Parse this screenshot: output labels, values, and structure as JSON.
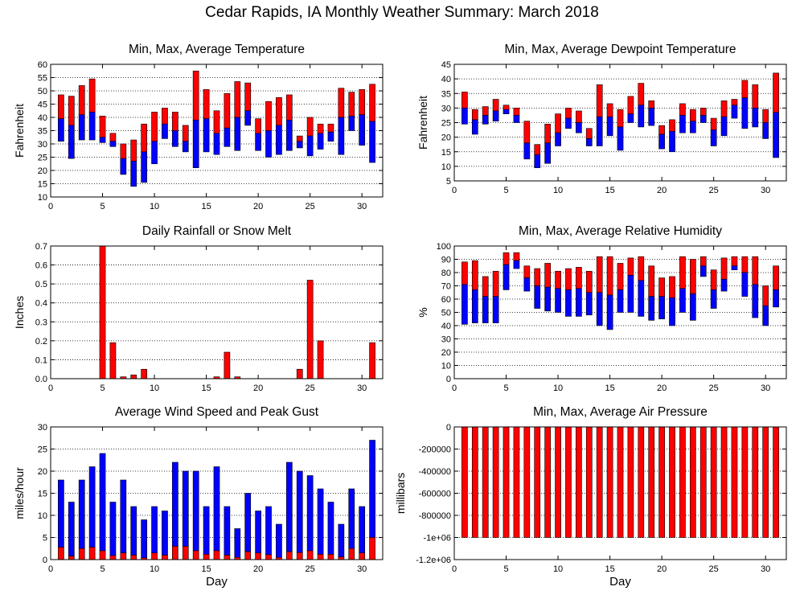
{
  "title": "Cedar Rapids, IA Monthly Weather Summary: March 2018",
  "colors": {
    "red": "#ff0000",
    "blue": "#0000ff",
    "grid": "#000000"
  },
  "chart_data": [
    {
      "id": "temp",
      "type": "bar",
      "title": "Min, Max, Average Temperature",
      "xlabel": "",
      "ylabel": "Fahrenheit",
      "xlim": [
        0,
        32
      ],
      "ylim": [
        10,
        60
      ],
      "xticks": [
        0,
        5,
        10,
        15,
        20,
        25,
        30
      ],
      "yticks": [
        10,
        15,
        20,
        25,
        30,
        35,
        40,
        45,
        50,
        55,
        60
      ],
      "grid": true,
      "x": [
        1,
        2,
        3,
        4,
        5,
        6,
        7,
        8,
        9,
        10,
        11,
        12,
        13,
        14,
        15,
        16,
        17,
        18,
        19,
        20,
        21,
        22,
        23,
        24,
        25,
        26,
        27,
        28,
        29,
        30,
        31
      ],
      "series": [
        {
          "role": "max",
          "values": [
            48.5,
            48,
            52,
            54.5,
            40.5,
            34,
            30,
            31.5,
            37.5,
            42,
            43.5,
            42,
            37,
            57.5,
            50.5,
            42.5,
            49,
            53.5,
            53,
            39.5,
            46,
            47.5,
            48.5,
            33,
            40,
            37.5,
            37.5,
            51,
            49.5,
            50.5,
            52.5
          ]
        },
        {
          "role": "avg",
          "values": [
            39.5,
            37,
            41,
            42,
            32.5,
            31,
            24.5,
            23.5,
            27,
            31,
            37.5,
            35,
            31,
            39,
            39.5,
            34,
            36,
            40,
            42.5,
            34,
            35,
            37,
            39,
            31,
            33,
            34,
            34.5,
            40,
            40.5,
            41,
            38.5
          ]
        },
        {
          "role": "min",
          "values": [
            31,
            24.5,
            31.5,
            31.5,
            30.5,
            29,
            18.5,
            14,
            15.5,
            22.5,
            32,
            29,
            27,
            21,
            27,
            26,
            29,
            27.5,
            37,
            27.5,
            25,
            26,
            27.5,
            28.5,
            25.5,
            28,
            31,
            26,
            35,
            29.5,
            23
          ]
        }
      ]
    },
    {
      "id": "dewpoint",
      "type": "bar",
      "title": "Min, Max, Average Dewpoint Temperature",
      "xlabel": "",
      "ylabel": "Fahrenheit",
      "xlim": [
        0,
        32
      ],
      "ylim": [
        5,
        45
      ],
      "xticks": [
        0,
        5,
        10,
        15,
        20,
        25,
        30
      ],
      "yticks": [
        5,
        10,
        15,
        20,
        25,
        30,
        35,
        40,
        45
      ],
      "grid": true,
      "x": [
        1,
        2,
        3,
        4,
        5,
        6,
        7,
        8,
        9,
        10,
        11,
        12,
        13,
        14,
        15,
        16,
        17,
        18,
        19,
        20,
        21,
        22,
        23,
        24,
        25,
        26,
        27,
        28,
        29,
        30,
        31
      ],
      "series": [
        {
          "role": "max",
          "values": [
            35.5,
            29.5,
            30.5,
            33,
            31,
            30,
            25.5,
            17.5,
            24.5,
            28,
            30,
            29,
            23,
            38,
            31.5,
            29.5,
            34,
            38.5,
            32.5,
            24,
            26,
            31.5,
            29.5,
            30,
            26.5,
            32.5,
            33,
            39.5,
            38,
            29.5,
            42
          ]
        },
        {
          "role": "avg",
          "values": [
            30,
            26,
            27.5,
            29,
            29.5,
            27.5,
            18,
            14,
            18,
            21.5,
            26.5,
            25,
            19.5,
            27,
            27,
            23.5,
            28,
            31,
            30,
            21,
            22,
            27.5,
            25.5,
            27.5,
            22.5,
            27,
            31,
            33.5,
            30,
            25,
            28.5
          ]
        },
        {
          "role": "min",
          "values": [
            24.5,
            21,
            24.5,
            25.5,
            28,
            25,
            12.5,
            9.5,
            11,
            17,
            23,
            21.5,
            17,
            17,
            20.5,
            15.5,
            25,
            23.5,
            24,
            16,
            15,
            21.5,
            21.5,
            25,
            17,
            20.5,
            26.5,
            23,
            23.5,
            19.5,
            13
          ]
        }
      ]
    },
    {
      "id": "rain",
      "type": "bar",
      "title": "Daily Rainfall or Snow Melt",
      "xlabel": "",
      "ylabel": "Inches",
      "xlim": [
        0,
        32
      ],
      "ylim": [
        0,
        0.7
      ],
      "xticks": [
        0,
        5,
        10,
        15,
        20,
        25,
        30
      ],
      "yticks": [
        0,
        0.1,
        0.2,
        0.3,
        0.4,
        0.5,
        0.6,
        0.7
      ],
      "ytick_labels": [
        "0.0",
        "0.1",
        "0.2",
        "0.3",
        "0.4",
        "0.5",
        "0.6",
        "0.7"
      ],
      "grid": true,
      "x": [
        1,
        2,
        3,
        4,
        5,
        6,
        7,
        8,
        9,
        10,
        11,
        12,
        13,
        14,
        15,
        16,
        17,
        18,
        19,
        20,
        21,
        22,
        23,
        24,
        25,
        26,
        27,
        28,
        29,
        30,
        31
      ],
      "series": [
        {
          "role": "precip",
          "values": [
            0,
            0,
            0,
            0,
            0.7,
            0.19,
            0.01,
            0.02,
            0.05,
            0,
            0,
            0,
            0,
            0,
            0,
            0.01,
            0.14,
            0.01,
            0,
            0,
            0,
            0,
            0,
            0.05,
            0.52,
            0.2,
            0,
            0,
            0,
            0,
            0.19
          ]
        }
      ]
    },
    {
      "id": "rh",
      "type": "bar",
      "title": "Min, Max, Average Relative Humidity",
      "xlabel": "",
      "ylabel": "%",
      "xlim": [
        0,
        32
      ],
      "ylim": [
        0,
        100
      ],
      "xticks": [
        0,
        5,
        10,
        15,
        20,
        25,
        30
      ],
      "yticks": [
        0,
        10,
        20,
        30,
        40,
        50,
        60,
        70,
        80,
        90,
        100
      ],
      "grid": true,
      "x": [
        1,
        2,
        3,
        4,
        5,
        6,
        7,
        8,
        9,
        10,
        11,
        12,
        13,
        14,
        15,
        16,
        17,
        18,
        19,
        20,
        21,
        22,
        23,
        24,
        25,
        26,
        27,
        28,
        29,
        30,
        31
      ],
      "series": [
        {
          "role": "max",
          "values": [
            88,
            89,
            77,
            81,
            95,
            95,
            85,
            83,
            87,
            81,
            83,
            84,
            81,
            92,
            92,
            87,
            91,
            92,
            85,
            76,
            77,
            92,
            90,
            92,
            82,
            91,
            92,
            92,
            92,
            70,
            85
          ]
        },
        {
          "role": "avg",
          "values": [
            71,
            67,
            62,
            62,
            86,
            89,
            76,
            70,
            69,
            68,
            67,
            68,
            65,
            65,
            63,
            67,
            78,
            74,
            62,
            62,
            61,
            68,
            64,
            85,
            67,
            75,
            85,
            80,
            71,
            55,
            67
          ]
        },
        {
          "role": "min",
          "values": [
            41,
            42,
            42,
            42,
            67,
            83,
            66,
            53,
            51,
            50,
            47,
            47,
            48,
            40,
            37,
            50,
            50,
            47,
            44,
            45,
            40,
            50,
            44,
            77,
            53,
            66,
            82,
            62,
            46,
            40,
            54
          ]
        }
      ]
    },
    {
      "id": "wind",
      "type": "bar",
      "title": "Average Wind Speed and Peak Gust",
      "xlabel": "Day",
      "ylabel": "miles/hour",
      "xlim": [
        0,
        32
      ],
      "ylim": [
        0,
        30
      ],
      "xticks": [
        0,
        5,
        10,
        15,
        20,
        25,
        30
      ],
      "yticks": [
        0,
        5,
        10,
        15,
        20,
        25,
        30
      ],
      "grid": true,
      "x": [
        1,
        2,
        3,
        4,
        5,
        6,
        7,
        8,
        9,
        10,
        11,
        12,
        13,
        14,
        15,
        16,
        17,
        18,
        19,
        20,
        21,
        22,
        23,
        24,
        25,
        26,
        27,
        28,
        29,
        30,
        31
      ],
      "series": [
        {
          "role": "gust",
          "values": [
            18,
            13,
            18,
            21,
            24,
            13,
            18,
            12,
            9,
            12,
            11,
            22,
            20,
            20,
            12,
            21,
            12,
            7,
            15,
            11,
            12,
            8,
            22,
            20,
            19,
            16,
            13,
            8,
            16,
            12,
            27
          ]
        },
        {
          "role": "avg",
          "values": [
            2.8,
            0.8,
            2.5,
            2.8,
            2,
            0.9,
            1.5,
            1,
            0.4,
            1.5,
            1,
            3,
            3,
            2,
            1.2,
            2,
            1,
            0.5,
            1.8,
            1.5,
            1.1,
            0.5,
            1.8,
            1.6,
            2,
            1.2,
            1.2,
            0.6,
            2.5,
            1.5,
            5
          ]
        }
      ]
    },
    {
      "id": "pressure",
      "type": "bar",
      "title": "Min, Max, Average Air Pressure",
      "xlabel": "Day",
      "ylabel": "millibars",
      "xlim": [
        0,
        32
      ],
      "ylim": [
        -1200000,
        0
      ],
      "xticks": [
        0,
        5,
        10,
        15,
        20,
        25,
        30
      ],
      "yticks": [
        0,
        -200000,
        -400000,
        -600000,
        -800000,
        -1000000,
        -1200000
      ],
      "ytick_labels": [
        "0",
        "-200000",
        "-400000",
        "-600000",
        "-800000",
        "-1e+06",
        "-1.2e+06"
      ],
      "grid": true,
      "x": [
        1,
        2,
        3,
        4,
        5,
        6,
        7,
        8,
        9,
        10,
        11,
        12,
        13,
        14,
        15,
        16,
        17,
        18,
        19,
        20,
        21,
        22,
        23,
        24,
        25,
        26,
        27,
        28,
        29,
        30,
        31
      ],
      "series": [
        {
          "role": "max",
          "values": [
            0,
            0,
            0,
            0,
            0,
            0,
            0,
            0,
            0,
            0,
            0,
            0,
            0,
            0,
            0,
            0,
            0,
            0,
            0,
            0,
            0,
            0,
            0,
            0,
            0,
            0,
            0,
            0,
            0,
            0,
            0
          ]
        },
        {
          "role": "min",
          "values": [
            -1000000,
            -1000000,
            -1000000,
            -1000000,
            -1000000,
            -1000000,
            -1000000,
            -1000000,
            -1000000,
            -1000000,
            -1000000,
            -1000000,
            -1000000,
            -1000000,
            -1000000,
            -1000000,
            -1000000,
            -1000000,
            -1000000,
            -1000000,
            -1000000,
            -1000000,
            -1000000,
            -1000000,
            -1000000,
            -1000000,
            -1000000,
            -1000000,
            -1000000,
            -1000000,
            -1000000
          ]
        }
      ]
    }
  ]
}
